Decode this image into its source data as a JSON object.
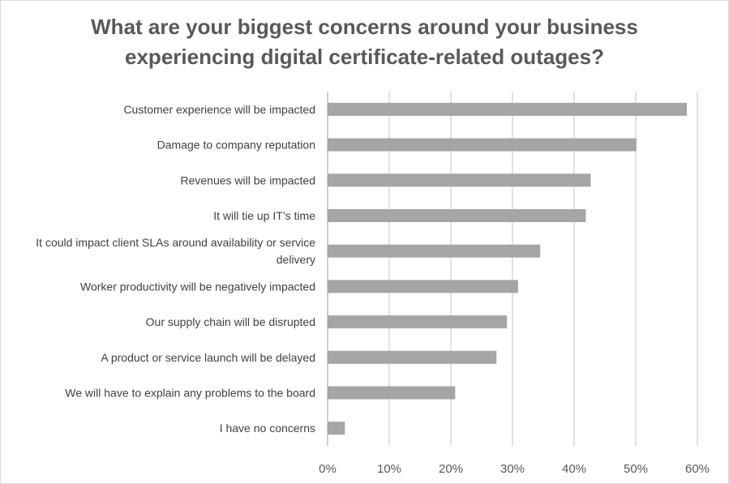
{
  "chart_data": {
    "type": "bar",
    "orientation": "horizontal",
    "title": [
      "What are your biggest concerns around your business",
      "experiencing digital certificate-related outages?"
    ],
    "categories": [
      "Customer experience will be impacted",
      "Damage to company reputation",
      "Revenues will be impacted",
      "It will tie up IT’s time",
      "It could impact client SLAs around availability or service delivery",
      "Worker productivity will be negatively impacted",
      "Our supply chain will be disrupted",
      "A product or service launch will be delayed",
      "We will have to explain any problems to the board",
      "I have no concerns"
    ],
    "category_lines": [
      [
        "Customer experience will be impacted"
      ],
      [
        "Damage to company reputation"
      ],
      [
        "Revenues will be impacted"
      ],
      [
        "It will tie up IT’s time"
      ],
      [
        "It could impact client SLAs around availability or service",
        "delivery"
      ],
      [
        "Worker productivity will be negatively impacted"
      ],
      [
        "Our supply chain will be disrupted"
      ],
      [
        "A product or service launch will be delayed"
      ],
      [
        "We will have to explain any problems to the board"
      ],
      [
        "I have no concerns"
      ]
    ],
    "values": [
      58.3,
      50.1,
      42.7,
      41.9,
      34.5,
      30.9,
      29.1,
      27.4,
      20.7,
      2.8
    ],
    "xlim": [
      0,
      60
    ],
    "xticks": [
      "0%",
      "10%",
      "20%",
      "30%",
      "40%",
      "50%",
      "60%"
    ],
    "xtick_values": [
      0,
      10,
      20,
      30,
      40,
      50,
      60
    ],
    "grid": true,
    "legend": "none",
    "colors": {
      "bar": "#a5a5a5",
      "grid": "#d9d9d9",
      "text": "#595959",
      "axis_line": "#bfbfbf"
    }
  }
}
